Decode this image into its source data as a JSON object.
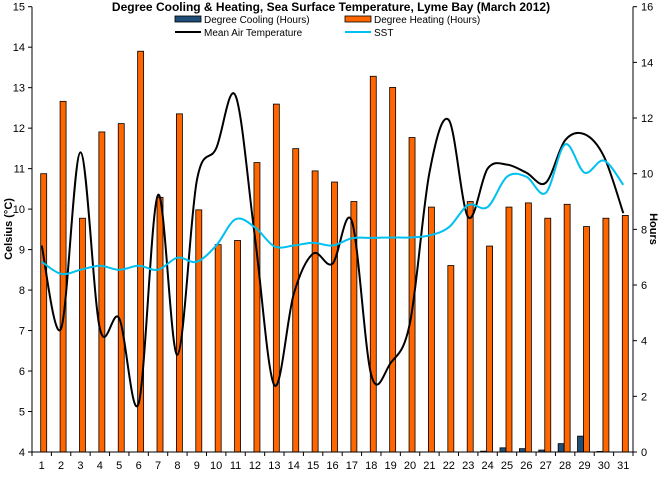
{
  "chart_data": {
    "type": "bar",
    "title": "Degree Cooling & Heating, Sea Surface Temperature, Lyme Bay (March 2012)",
    "xlabel": "",
    "ylabel": "Celsius (°C)",
    "y2label": "Hours",
    "ylim": [
      4,
      15
    ],
    "y2lim": [
      0,
      16
    ],
    "yticks": [
      4,
      5,
      6,
      7,
      8,
      9,
      10,
      11,
      12,
      13,
      14,
      15
    ],
    "y2ticks": [
      0,
      2,
      4,
      6,
      8,
      10,
      12,
      14,
      16
    ],
    "categories": [
      "1",
      "2",
      "3",
      "4",
      "5",
      "6",
      "7",
      "8",
      "9",
      "10",
      "11",
      "12",
      "13",
      "14",
      "15",
      "16",
      "17",
      "18",
      "19",
      "20",
      "21",
      "22",
      "23",
      "24",
      "25",
      "26",
      "27",
      "28",
      "29",
      "30",
      "31"
    ],
    "series": [
      {
        "name": "Degree Cooling (Hours)",
        "type": "bar",
        "axis": "right",
        "color": "#1f4e79",
        "values": [
          0,
          0,
          0,
          0,
          0,
          0,
          0,
          0,
          0,
          0,
          0,
          0,
          0,
          0,
          0,
          0,
          0,
          0,
          0,
          0,
          0,
          0,
          0,
          0.03,
          0.15,
          0.12,
          0.07,
          0.3,
          0.57,
          0.02,
          0
        ]
      },
      {
        "name": "Degree Heating (Hours)",
        "type": "bar",
        "axis": "right",
        "color": "#ff6600",
        "values": [
          10.0,
          12.6,
          8.4,
          11.5,
          11.8,
          14.4,
          9.15,
          12.15,
          8.7,
          7.45,
          7.6,
          10.4,
          12.5,
          10.9,
          10.1,
          9.7,
          9.0,
          13.5,
          13.1,
          11.3,
          8.8,
          6.7,
          9.0,
          7.4,
          8.8,
          8.95,
          8.4,
          8.9,
          8.1,
          8.4,
          8.5
        ]
      },
      {
        "name": "Mean Air Temperature",
        "type": "line",
        "axis": "left",
        "color": "#000000",
        "values": [
          9.1,
          7.05,
          11.4,
          7.05,
          7.3,
          5.2,
          10.35,
          6.4,
          10.7,
          11.5,
          12.8,
          9.3,
          5.65,
          7.9,
          8.9,
          8.65,
          9.7,
          5.9,
          6.2,
          7.2,
          10.9,
          12.2,
          9.8,
          11.0,
          11.1,
          10.9,
          10.65,
          11.7,
          11.85,
          11.3,
          9.9
        ]
      },
      {
        "name": "SST",
        "type": "line",
        "axis": "left",
        "color": "#00c0f0",
        "values": [
          8.7,
          8.4,
          8.5,
          8.6,
          8.5,
          8.6,
          8.5,
          8.8,
          8.7,
          9.1,
          9.75,
          9.55,
          9.08,
          9.1,
          9.17,
          9.1,
          9.28,
          9.29,
          9.3,
          9.3,
          9.35,
          9.55,
          10.1,
          10.05,
          10.8,
          10.8,
          10.4,
          11.6,
          10.9,
          11.2,
          10.6
        ]
      }
    ],
    "legend": "top-center",
    "grid": false
  }
}
